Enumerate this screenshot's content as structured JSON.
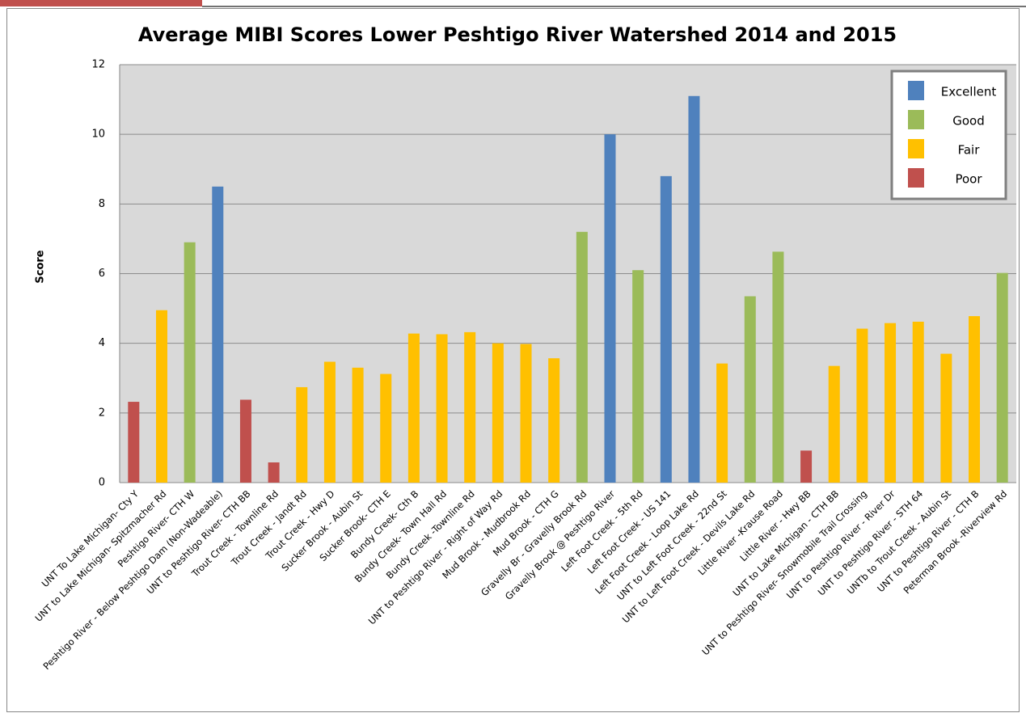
{
  "chart_data": {
    "type": "bar",
    "title": "Average MIBI Scores Lower Peshtigo River Watershed 2014 and 2015",
    "y_label": "Score",
    "categories": [
      "UNT To Lake Michigan- Cty Y",
      "UNT to Lake Michigan- Spitzmacher Rd",
      "Peshtigo River- CTH W",
      "Peshtigo River - Below Peshtigo Dam (Non-Wadeable)",
      "UNT to Peshtigo River- CTH BB",
      "Trout Creek - Townline Rd",
      "Trout Creek - Jandt Rd",
      "Trout Creek - Hwy D",
      "Sucker Brook - Aubin St",
      "Sucker Brook- CTH E",
      "Bundy Creek- Cth B",
      "Bundy Creek- Town Hall Rd",
      "Bundy Creek -Townline Rd",
      "UNT to Peshtigo River - Right of Way Rd",
      "Mud Brook - Mudbrook Rd",
      "Mud Brook - CTH G",
      "Gravelly Br - Gravelly Brook Rd",
      "Gravelly Brook @ Peshtigo River",
      "Left Foot Creek - 5th Rd",
      "Left Foot Creek - US 141",
      "Left Foot Creek - Loop Lake Rd",
      "UNT to Left Foot Creek - 22nd St",
      "UNT to Left Foot Creek - Devils Lake Rd",
      "Little River -Krause Road",
      "Little River - Hwy BB",
      "UNT to Lake Michigan - CTH BB",
      "UNT to Peshtigo River- Snowmobile Trail Crossing",
      "UNT to Peshtigo River - River Dr",
      "UNT to Peshtigo River - STH 64",
      "UNTb to Trout Creek - Aubin St",
      "UNT to Peshtigo River - CTH B",
      "Peterman Brook -Riverview Rd"
    ],
    "series": [
      {
        "name": "Excellent",
        "color": "#4f81bd",
        "values": [
          null,
          null,
          null,
          8.5,
          null,
          null,
          null,
          null,
          null,
          null,
          null,
          null,
          null,
          null,
          null,
          null,
          null,
          10.0,
          null,
          8.8,
          11.1,
          null,
          null,
          null,
          null,
          null,
          null,
          null,
          null,
          null,
          null,
          null
        ]
      },
      {
        "name": "Good",
        "color": "#9bbb59",
        "values": [
          null,
          null,
          6.9,
          null,
          null,
          null,
          null,
          null,
          null,
          null,
          null,
          null,
          null,
          null,
          null,
          null,
          7.2,
          null,
          6.1,
          null,
          null,
          null,
          5.35,
          6.63,
          null,
          null,
          null,
          null,
          null,
          null,
          null,
          6.02
        ]
      },
      {
        "name": "Fair",
        "color": "#ffc000",
        "values": [
          null,
          4.95,
          null,
          null,
          null,
          null,
          2.74,
          3.47,
          3.3,
          3.12,
          4.28,
          4.26,
          4.32,
          4.0,
          3.98,
          3.57,
          null,
          null,
          null,
          null,
          null,
          3.42,
          null,
          null,
          null,
          3.35,
          4.42,
          4.58,
          4.62,
          3.7,
          4.78,
          null
        ]
      },
      {
        "name": "Poor",
        "color": "#c0504d",
        "values": [
          2.32,
          null,
          null,
          null,
          2.38,
          0.58,
          null,
          null,
          null,
          null,
          null,
          null,
          null,
          null,
          null,
          null,
          null,
          null,
          null,
          null,
          null,
          null,
          null,
          null,
          0.92,
          null,
          null,
          null,
          null,
          null,
          null,
          null
        ]
      }
    ],
    "ylim": [
      0,
      12
    ],
    "yticks": [
      0,
      2,
      4,
      6,
      8,
      10,
      12
    ],
    "grid": true,
    "legend": "top-right"
  }
}
